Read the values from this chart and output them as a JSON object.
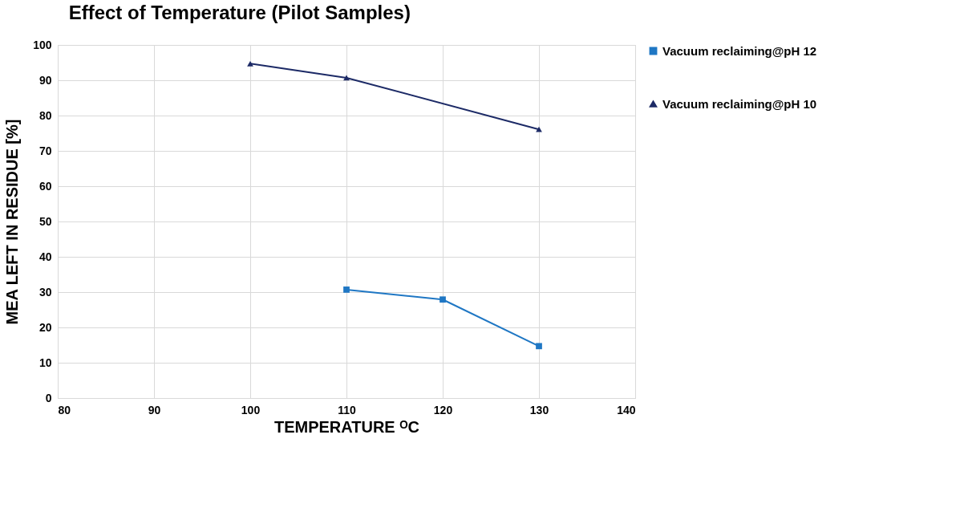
{
  "chart_data": {
    "type": "line",
    "title": "Effect of Temperature (Pilot Samples)",
    "xlabel": "TEMPERATURE ᴼC",
    "ylabel": "MEA LEFT IN RESIDUE [%]",
    "series": [
      {
        "name": "Vacuum reclaiming@pH 12",
        "color": "#1f77c4",
        "marker": "square",
        "x": [
          110,
          120,
          130
        ],
        "values": [
          30.7,
          27.9,
          14.7
        ]
      },
      {
        "name": "Vacuum reclaiming@pH 10",
        "color": "#1c2a66",
        "marker": "triangle",
        "x": [
          100,
          110,
          130
        ],
        "values": [
          94.7,
          90.7,
          76.1
        ]
      }
    ],
    "xlim": [
      80,
      140
    ],
    "xticks": [
      80,
      90,
      100,
      110,
      120,
      130,
      140
    ],
    "ylim": [
      0,
      100
    ],
    "yticks": [
      0,
      10,
      20,
      30,
      40,
      50,
      60,
      70,
      80,
      90,
      100
    ],
    "grid": true,
    "legend": "right",
    "line_style": "solid"
  }
}
